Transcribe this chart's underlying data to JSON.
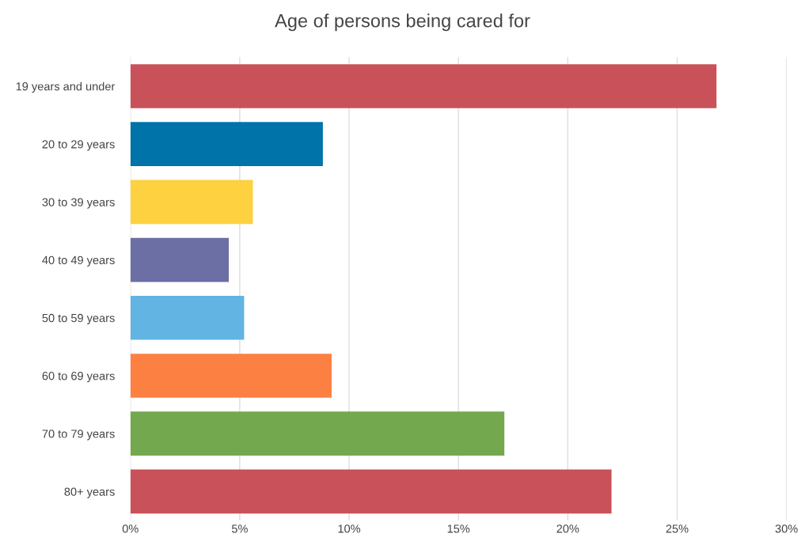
{
  "chart_data": {
    "type": "bar",
    "orientation": "horizontal",
    "title": "Age of persons being cared for",
    "categories": [
      "19 years and under",
      "20 to 29 years",
      "30 to 39 years",
      "40 to 49 years",
      "50 to 59 years",
      "60 to 69 years",
      "70 to 79 years",
      "80+ years"
    ],
    "values": [
      26.8,
      8.8,
      5.6,
      4.5,
      5.2,
      9.2,
      17.1,
      22.0
    ],
    "colors": [
      "#c9525a",
      "#0073a8",
      "#fdd13f",
      "#6b6fa3",
      "#62b4e2",
      "#fd8043",
      "#74a84f",
      "#c9525a"
    ],
    "xlim": [
      0,
      30
    ],
    "xticks": [
      {
        "value": 0,
        "label": "0%"
      },
      {
        "value": 5,
        "label": "5%"
      },
      {
        "value": 10,
        "label": "10%"
      },
      {
        "value": 15,
        "label": "15%"
      },
      {
        "value": 20,
        "label": "20%"
      },
      {
        "value": 25,
        "label": "25%"
      },
      {
        "value": 30,
        "label": "30%"
      }
    ],
    "grid": "x"
  }
}
